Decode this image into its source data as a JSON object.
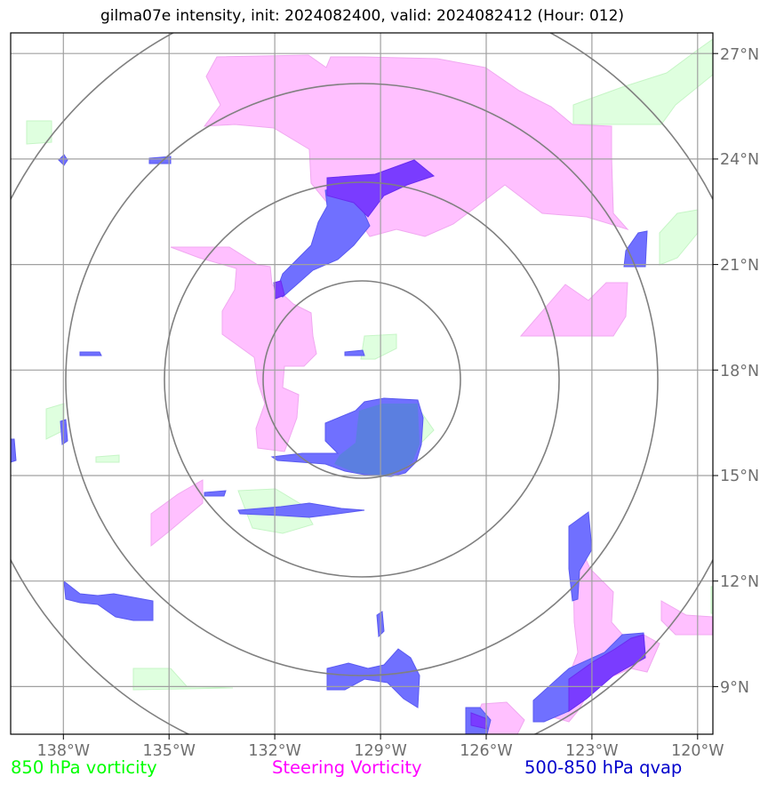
{
  "title": "gilma07e intensity, init: 2024082400, valid: 2024082412 (Hour: 012)",
  "map": {
    "lon_range": [
      -139.5,
      -119.6
    ],
    "lat_range": [
      7.8,
      27.7
    ],
    "lon_ticks": [
      -138,
      -135,
      -132,
      -129,
      -126,
      -123,
      -120
    ],
    "lon_tick_labels": [
      "138°W",
      "135°W",
      "132°W",
      "129°W",
      "126°W",
      "123°W",
      "120°W"
    ],
    "lat_ticks": [
      9,
      12,
      15,
      18,
      21,
      24,
      27
    ],
    "lat_tick_labels": [
      "9°N",
      "12°N",
      "15°N",
      "18°N",
      "21°N",
      "24°N",
      "27°N"
    ],
    "range_rings_center": {
      "lon": -129.5,
      "lat": 17.7
    },
    "range_ring_count": 4,
    "grid": true
  },
  "legend": {
    "vort850": {
      "label": "850 hPa vorticity",
      "color": "#00ff00"
    },
    "steering": {
      "label": "Steering Vorticity",
      "color": "#ff00ff"
    },
    "qvap": {
      "label": "500-850 hPa qvap",
      "color": "#0000cc"
    }
  },
  "colors": {
    "vort850_fill": "#dfffdf",
    "steering_fill": "#ffc0ff",
    "qvap_fill": "#7070ff",
    "overlap_fill": "#7a3cff",
    "grid": "#a0a0a0",
    "rings": "#808080"
  }
}
